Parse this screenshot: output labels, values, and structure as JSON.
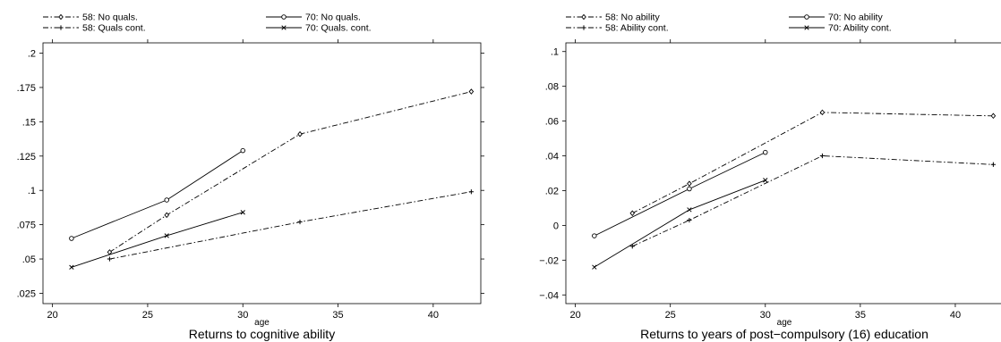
{
  "chart_data": [
    {
      "type": "line",
      "title": "Returns to cognitive ability",
      "xlabel": "age",
      "ylabel": "",
      "xlim": [
        19.5,
        42.5
      ],
      "ylim": [
        0.0175,
        0.2075
      ],
      "xticks": [
        "20",
        "25",
        "30",
        "35",
        "40"
      ],
      "xtick_values": [
        20,
        25,
        30,
        35,
        40
      ],
      "yticks": [
        ".025",
        ".05",
        ".075",
        ".1",
        ".125",
        ".15",
        ".175",
        ".2"
      ],
      "ytick_values": [
        0.025,
        0.05,
        0.075,
        0.1,
        0.125,
        0.15,
        0.175,
        0.2
      ],
      "series": [
        {
          "name": "58: No quals.",
          "style": "dashdot",
          "marker": "diamond",
          "x": [
            23,
            26,
            33,
            42
          ],
          "y": [
            0.055,
            0.082,
            0.141,
            0.172
          ]
        },
        {
          "name": "70: No quals.",
          "style": "solid",
          "marker": "circle",
          "x": [
            21,
            26,
            30
          ],
          "y": [
            0.065,
            0.093,
            0.129
          ]
        },
        {
          "name": "58: Quals cont.",
          "style": "dashdot",
          "marker": "plus",
          "x": [
            23,
            33,
            42
          ],
          "y": [
            0.05,
            0.077,
            0.099
          ]
        },
        {
          "name": "70: Quals. cont.",
          "style": "solid",
          "marker": "x",
          "x": [
            21,
            26,
            30
          ],
          "y": [
            0.044,
            0.067,
            0.084
          ]
        }
      ]
    },
    {
      "type": "line",
      "title": "Returns to years of post−compulsory (16) education",
      "xlabel": "age",
      "ylabel": "",
      "xlim": [
        19.5,
        42.5
      ],
      "ylim": [
        -0.045,
        0.105
      ],
      "xticks": [
        "20",
        "25",
        "30",
        "35",
        "40"
      ],
      "xtick_values": [
        20,
        25,
        30,
        35,
        40
      ],
      "yticks": [
        "−.04",
        "−.02",
        "0",
        ".02",
        ".04",
        ".06",
        ".08",
        ".1"
      ],
      "ytick_values": [
        -0.04,
        -0.02,
        0,
        0.02,
        0.04,
        0.06,
        0.08,
        0.1
      ],
      "series": [
        {
          "name": "58: No ability",
          "style": "dashdot",
          "marker": "diamond",
          "x": [
            23,
            26,
            33,
            42
          ],
          "y": [
            0.007,
            0.024,
            0.065,
            0.063
          ]
        },
        {
          "name": "70: No ability",
          "style": "solid",
          "marker": "circle",
          "x": [
            21,
            26,
            30
          ],
          "y": [
            -0.006,
            0.021,
            0.042
          ]
        },
        {
          "name": "58: Ability cont.",
          "style": "dashdot",
          "marker": "plus",
          "x": [
            23,
            26,
            33,
            42
          ],
          "y": [
            -0.012,
            0.003,
            0.04,
            0.035
          ]
        },
        {
          "name": "70: Ability cont.",
          "style": "solid",
          "marker": "x",
          "x": [
            21,
            26,
            30
          ],
          "y": [
            -0.024,
            0.009,
            0.026
          ]
        }
      ]
    }
  ]
}
